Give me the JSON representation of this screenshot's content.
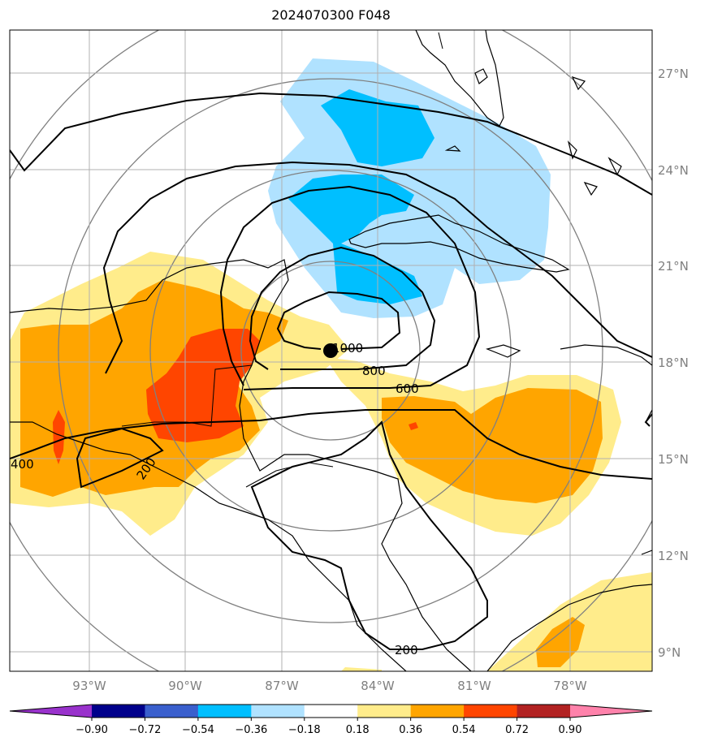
{
  "title": "2024070300 F048",
  "lat_labels": [
    "27°N",
    "24°N",
    "21°N",
    "18°N",
    "15°N",
    "12°N",
    "9°N"
  ],
  "lon_labels": [
    "93°W",
    "90°W",
    "87°W",
    "84°W",
    "81°W",
    "78°W"
  ],
  "contour_labels": [
    "1000",
    "800",
    "600",
    "400",
    "200",
    "200"
  ],
  "colorbar": {
    "ticks": [
      "−0.90",
      "−0.72",
      "−0.54",
      "−0.36",
      "−0.18",
      "0.18",
      "0.36",
      "0.54",
      "0.72",
      "0.90"
    ],
    "colors": [
      "#9932cc",
      "#00008b",
      "#3a5fcd",
      "#00bfff",
      "#b0e2ff",
      "#ffffff",
      "#ffec8b",
      "#ffa500",
      "#ff4500",
      "#b22222",
      "#ff82ab"
    ]
  },
  "storm_center": {
    "lat": 18.3,
    "lon": -85.5
  }
}
